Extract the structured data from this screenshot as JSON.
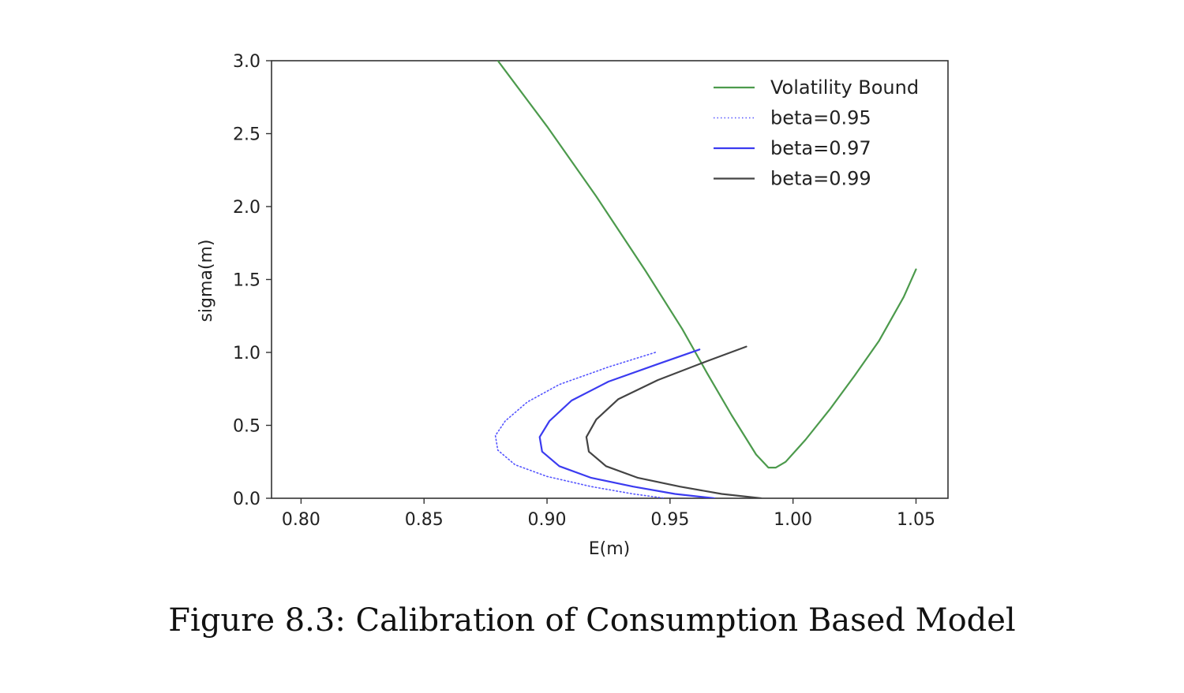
{
  "caption": "Figure 8.3: Calibration of Consumption Based Model",
  "chart_data": {
    "type": "line",
    "title": "",
    "xlabel": "E(m)",
    "ylabel": "sigma(m)",
    "xlim": [
      0.788,
      1.063
    ],
    "ylim": [
      0.0,
      3.0
    ],
    "xticks": [
      {
        "value": 0.8,
        "label": "0.80"
      },
      {
        "value": 0.85,
        "label": "0.85"
      },
      {
        "value": 0.9,
        "label": "0.90"
      },
      {
        "value": 0.95,
        "label": "0.95"
      },
      {
        "value": 1.0,
        "label": "1.00"
      },
      {
        "value": 1.05,
        "label": "1.05"
      }
    ],
    "yticks": [
      {
        "value": 0.0,
        "label": "0.0"
      },
      {
        "value": 0.5,
        "label": "0.5"
      },
      {
        "value": 1.0,
        "label": "1.0"
      },
      {
        "value": 1.5,
        "label": "1.5"
      },
      {
        "value": 2.0,
        "label": "2.0"
      },
      {
        "value": 2.5,
        "label": "2.5"
      },
      {
        "value": 3.0,
        "label": "3.0"
      }
    ],
    "grid": false,
    "legend_position": "top-right",
    "series": [
      {
        "name": "Volatility Bound",
        "color": "#4c9a4c",
        "style": "solid",
        "x": [
          0.88,
          0.9,
          0.92,
          0.94,
          0.955,
          0.965,
          0.975,
          0.985,
          0.99,
          0.993,
          0.997,
          1.005,
          1.015,
          1.025,
          1.035,
          1.045,
          1.05
        ],
        "y": [
          3.0,
          2.55,
          2.07,
          1.56,
          1.16,
          0.86,
          0.57,
          0.3,
          0.21,
          0.21,
          0.25,
          0.4,
          0.61,
          0.84,
          1.08,
          1.38,
          1.57
        ]
      },
      {
        "name": "beta=0.95",
        "color": "#5555ff",
        "style": "dotted",
        "x": [
          0.944,
          0.925,
          0.905,
          0.892,
          0.883,
          0.879,
          0.88,
          0.887,
          0.9,
          0.918,
          0.935,
          0.948
        ],
        "y": [
          1.0,
          0.9,
          0.78,
          0.66,
          0.53,
          0.43,
          0.33,
          0.23,
          0.15,
          0.08,
          0.03,
          0.0
        ]
      },
      {
        "name": "beta=0.97",
        "color": "#3b3bf0",
        "style": "solid",
        "x": [
          0.962,
          0.945,
          0.925,
          0.91,
          0.901,
          0.897,
          0.898,
          0.905,
          0.918,
          0.935,
          0.952,
          0.968
        ],
        "y": [
          1.02,
          0.92,
          0.8,
          0.67,
          0.53,
          0.42,
          0.32,
          0.22,
          0.14,
          0.08,
          0.03,
          0.0
        ]
      },
      {
        "name": "beta=0.99",
        "color": "#444444",
        "style": "solid",
        "x": [
          0.981,
          0.965,
          0.945,
          0.929,
          0.92,
          0.916,
          0.917,
          0.924,
          0.937,
          0.954,
          0.971,
          0.987
        ],
        "y": [
          1.04,
          0.94,
          0.81,
          0.68,
          0.54,
          0.42,
          0.32,
          0.22,
          0.14,
          0.08,
          0.03,
          0.0
        ]
      }
    ]
  }
}
